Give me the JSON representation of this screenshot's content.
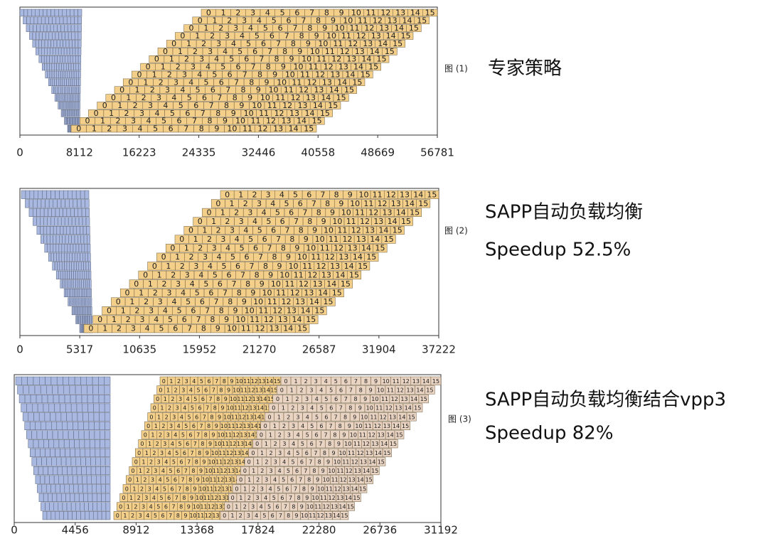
{
  "chart_data": [
    {
      "type": "gantt",
      "caption": "图 (1)",
      "annotations": [
        "专家策略"
      ],
      "xlim": [
        0,
        56781
      ],
      "xticks": [
        0,
        8112,
        16223,
        24335,
        32446,
        40558,
        48669,
        56781
      ],
      "labels": [
        0,
        1,
        2,
        3,
        4,
        5,
        6,
        7,
        8,
        9,
        10,
        11,
        12,
        13,
        14,
        15
      ]
    },
    {
      "type": "gantt",
      "caption": "图 (2)",
      "annotations": [
        "SAPP自动负载均衡",
        "Speedup 52.5%"
      ],
      "xlim": [
        0,
        37222
      ],
      "xticks": [
        0,
        5317,
        10635,
        15952,
        21270,
        26587,
        31904,
        37222
      ],
      "labels": [
        0,
        1,
        2,
        3,
        4,
        5,
        6,
        7,
        8,
        9,
        10,
        11,
        12,
        13,
        14,
        15
      ]
    },
    {
      "type": "gantt",
      "caption": "图 (3)",
      "annotations": [
        "SAPP自动负载均衡结合vpp3",
        "Speedup 82%"
      ],
      "xlim": [
        0,
        31192
      ],
      "xticks": [
        0,
        4456,
        8912,
        13368,
        17824,
        22280,
        26736,
        31192
      ],
      "labels": [
        0,
        1,
        2,
        3,
        4,
        5,
        6,
        7,
        8,
        9,
        10,
        11,
        12,
        13,
        14,
        15
      ]
    }
  ]
}
